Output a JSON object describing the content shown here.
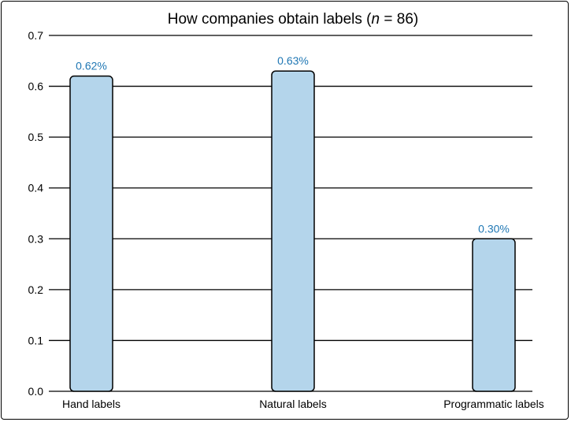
{
  "chart_data": {
    "type": "bar",
    "title_main": "How companies obtain labels (",
    "title_n": "n",
    "title_rest": " = 86)",
    "categories": [
      "Hand labels",
      "Natural labels",
      "Programmatic labels"
    ],
    "values": [
      0.62,
      0.63,
      0.3
    ],
    "data_labels": [
      "0.62%",
      "0.63%",
      "0.30%"
    ],
    "ylim": [
      0,
      0.7
    ],
    "yticks": [
      0.0,
      0.1,
      0.2,
      0.3,
      0.4,
      0.5,
      0.6,
      0.7
    ],
    "ytick_labels": [
      "0.0",
      "0.1",
      "0.2",
      "0.3",
      "0.4",
      "0.5",
      "0.6",
      "0.7"
    ],
    "grid": "horizontal",
    "legend": "none",
    "colors": {
      "bar_fill": "#b4d5eb",
      "bar_stroke": "#000000",
      "label": "#1f77b4"
    }
  }
}
